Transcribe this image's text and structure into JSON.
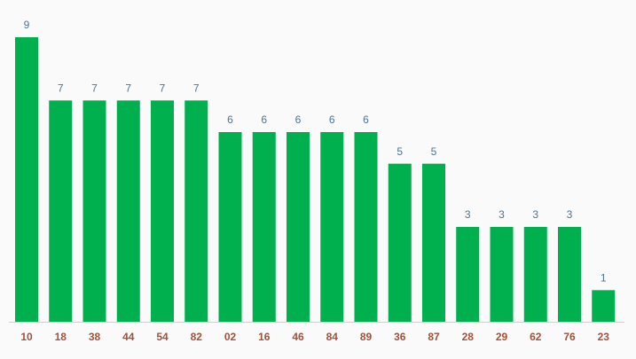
{
  "chart_data": {
    "type": "bar",
    "categories": [
      "10",
      "18",
      "38",
      "44",
      "54",
      "82",
      "02",
      "16",
      "46",
      "84",
      "89",
      "36",
      "87",
      "28",
      "29",
      "62",
      "76",
      "23"
    ],
    "values": [
      9,
      7,
      7,
      7,
      7,
      7,
      6,
      6,
      6,
      6,
      6,
      5,
      5,
      3,
      3,
      3,
      3,
      1
    ],
    "color": "#00b04f"
  }
}
